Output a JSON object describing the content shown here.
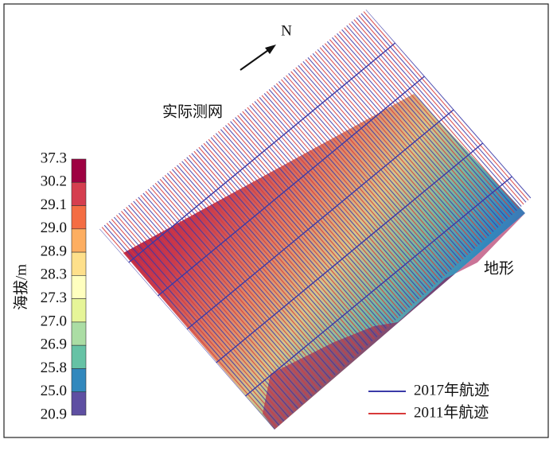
{
  "north": "N",
  "labels": {
    "survey": "实际测网",
    "terrain": "地形"
  },
  "colorbar": {
    "label": "海拔/m",
    "ticks": [
      "37.3",
      "30.2",
      "29.1",
      "29.0",
      "28.9",
      "28.3",
      "27.3",
      "27.0",
      "26.9",
      "25.8",
      "25.0",
      "20.9"
    ],
    "colors": [
      "#9e0142",
      "#d53e4f",
      "#f46d43",
      "#fdae61",
      "#fee08b",
      "#ffffbf",
      "#e6f598",
      "#abdda4",
      "#66c2a5",
      "#3288bd",
      "#5e4fa2"
    ]
  },
  "legend": [
    {
      "name": "2017年航迹",
      "color": "#3a3aa8"
    },
    {
      "name": "2011年航迹",
      "color": "#d83a3a"
    }
  ]
}
